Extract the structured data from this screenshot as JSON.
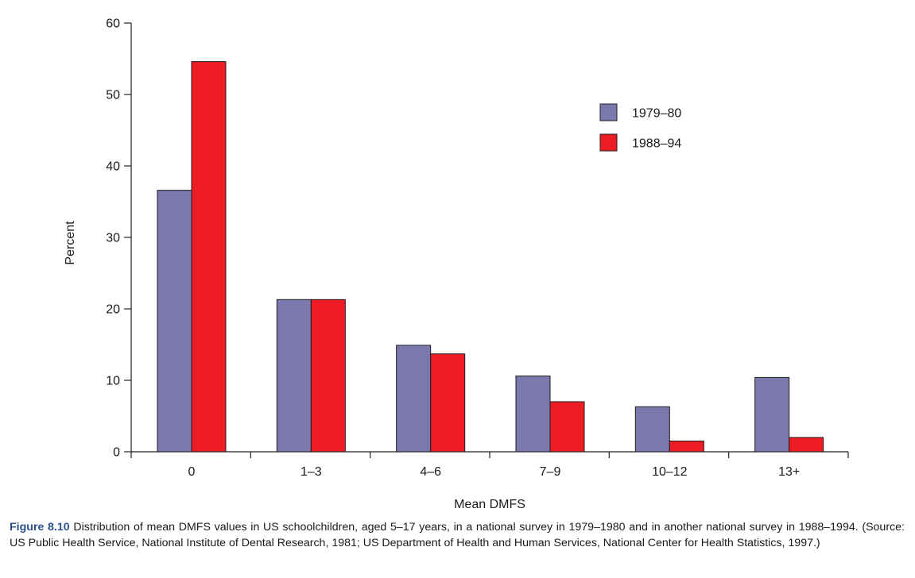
{
  "chart_data": {
    "type": "bar",
    "title": "",
    "xlabel": "Mean DMFS",
    "ylabel": "Percent",
    "ylim": [
      0,
      60
    ],
    "yticks": [
      "0",
      "10",
      "20",
      "30",
      "40",
      "50",
      "60"
    ],
    "categories": [
      "0",
      "1–3",
      "4–6",
      "7–9",
      "10–12",
      "13+"
    ],
    "series": [
      {
        "name": "1979–80",
        "color": "#7b78ad",
        "values": [
          36.6,
          21.3,
          14.9,
          10.6,
          6.3,
          10.4
        ]
      },
      {
        "name": "1988–94",
        "color": "#ee1c25",
        "values": [
          54.6,
          21.3,
          13.7,
          7.0,
          1.5,
          2.0
        ]
      }
    ],
    "legend_position": "top-right",
    "grid": false
  },
  "caption": {
    "label": "Figure 8.10",
    "text": "Distribution of mean DMFS values in US schoolchildren, aged 5–17 years, in a national survey in 1979–1980 and in another national survey in 1988–1994. (Source: US Public Health Service, National Institute of Dental Research, 1981; US Department of Health and Human Services, National Center for Health Statistics, 1997.)"
  }
}
